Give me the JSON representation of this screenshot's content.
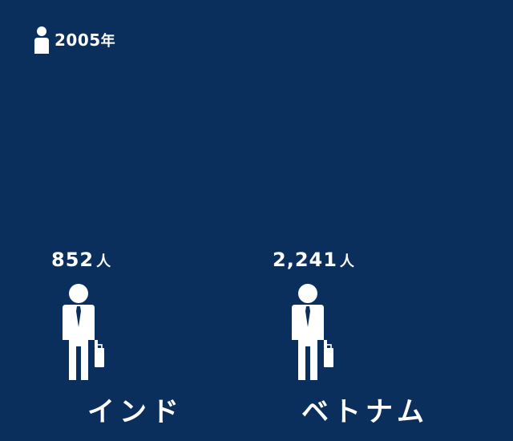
{
  "legend": {
    "year": "2005",
    "year_unit": "年"
  },
  "chart_data": {
    "type": "pictograph",
    "year": "2005年",
    "unit": "人",
    "categories": [
      "インド",
      "ベトナム"
    ],
    "values": [
      852,
      2241
    ],
    "value_labels": [
      "852",
      "2,241"
    ],
    "colors": {
      "background": "#0a2f5c",
      "foreground": "#ffffff"
    }
  }
}
